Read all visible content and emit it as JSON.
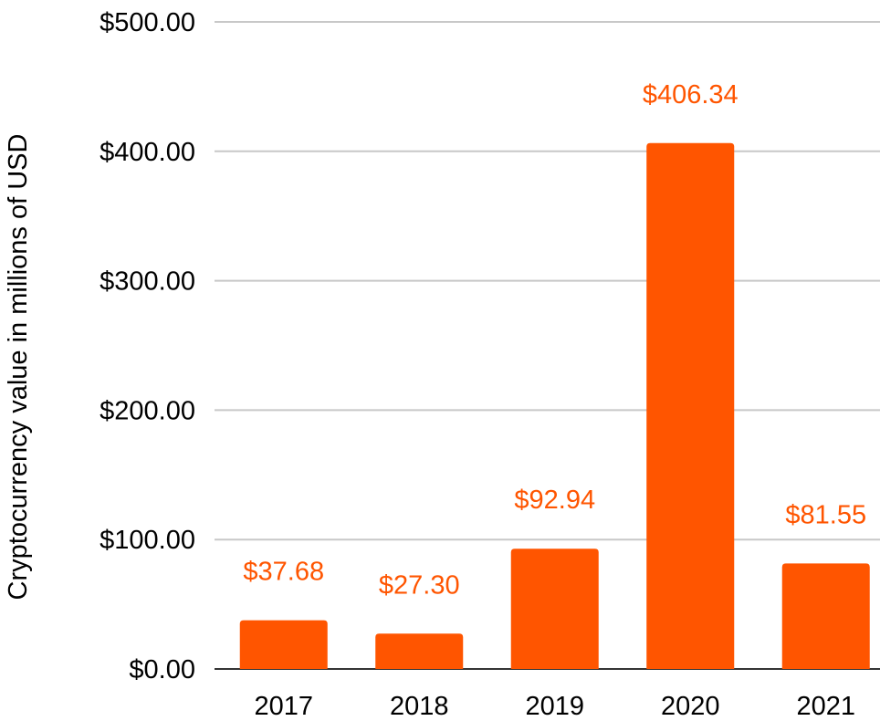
{
  "chart_data": {
    "type": "bar",
    "categories": [
      "2017",
      "2018",
      "2019",
      "2020",
      "2021"
    ],
    "values": [
      37.68,
      27.3,
      92.94,
      406.34,
      81.55
    ],
    "data_labels": [
      "$37.68",
      "$27.30",
      "$92.94",
      "$406.34",
      "$81.55"
    ],
    "title": "",
    "xlabel": "",
    "ylabel": "Cryptocurrency value in millions of USD",
    "ylim": [
      0,
      500
    ],
    "yticks": [
      0,
      100,
      200,
      300,
      400,
      500
    ],
    "ytick_labels": [
      "$0.00",
      "$100.00",
      "$200.00",
      "$300.00",
      "$400.00",
      "$500.00"
    ],
    "grid": true,
    "legend": "none",
    "colors": {
      "bar": "#ff5500",
      "data_label": "#ff5500",
      "grid": "#c8c8c8",
      "axis": "#333333"
    }
  }
}
